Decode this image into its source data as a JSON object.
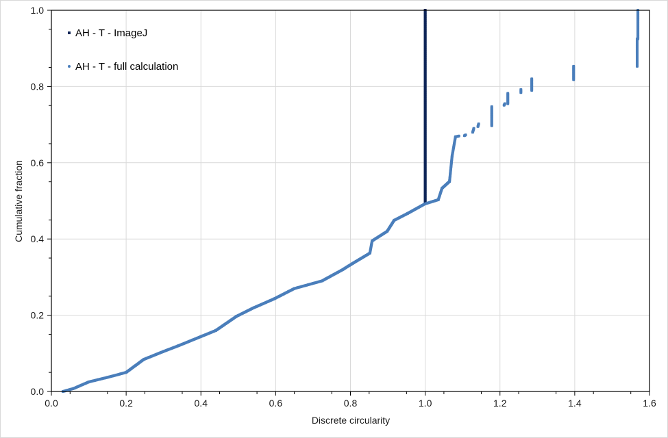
{
  "chart_data": {
    "type": "scatter",
    "xlabel": "Discrete circularity",
    "ylabel": "Cumulative fraction",
    "xlim": [
      0,
      1.6
    ],
    "ylim": [
      0,
      1.0
    ],
    "xticks": [
      "0.0",
      "0.2",
      "0.4",
      "0.6",
      "0.8",
      "1.0",
      "1.2",
      "1.4",
      "1.6"
    ],
    "yticks": [
      "0.0",
      "0.2",
      "0.4",
      "0.6",
      "0.8",
      "1.0"
    ],
    "grid": true,
    "legend_position": "top-left",
    "colors": {
      "imagej": "#0f2557",
      "full": "#4a7ebb",
      "grid": "#d9d9d9",
      "ylabel": "#5a2a10"
    },
    "series": [
      {
        "name": "AH - T - ImageJ",
        "segments": [
          [
            [
              1.0,
              0.497
            ],
            [
              1.0,
              1.0
            ]
          ]
        ]
      },
      {
        "name": "AH - T - full calculation",
        "segments": [
          [
            [
              0.031,
              0
            ],
            [
              0.06,
              0.008
            ],
            [
              0.1,
              0.025
            ],
            [
              0.15,
              0.037
            ],
            [
              0.2,
              0.05
            ],
            [
              0.247,
              0.084
            ],
            [
              0.3,
              0.105
            ],
            [
              0.34,
              0.12
            ],
            [
              0.4,
              0.144
            ],
            [
              0.44,
              0.16
            ],
            [
              0.495,
              0.197
            ],
            [
              0.54,
              0.219
            ],
            [
              0.596,
              0.243
            ],
            [
              0.65,
              0.27
            ],
            [
              0.724,
              0.29
            ],
            [
              0.78,
              0.32
            ],
            [
              0.806,
              0.336
            ],
            [
              0.852,
              0.363
            ],
            [
              0.858,
              0.395
            ],
            [
              0.898,
              0.42
            ],
            [
              0.917,
              0.449
            ],
            [
              0.953,
              0.467
            ],
            [
              0.999,
              0.492
            ],
            [
              1.035,
              0.503
            ],
            [
              1.045,
              0.533
            ],
            [
              1.065,
              0.551
            ],
            [
              1.072,
              0.618
            ],
            [
              1.081,
              0.668
            ],
            [
              1.09,
              0.67
            ]
          ],
          [
            [
              1.105,
              0.671
            ],
            [
              1.108,
              0.673
            ]
          ],
          [
            [
              1.127,
              0.68
            ],
            [
              1.13,
              0.69
            ]
          ],
          [
            [
              1.141,
              0.695
            ],
            [
              1.143,
              0.702
            ]
          ],
          [
            [
              1.178,
              0.697
            ],
            [
              1.178,
              0.747
            ]
          ],
          [
            [
              1.211,
              0.751
            ],
            [
              1.213,
              0.755
            ]
          ],
          [
            [
              1.221,
              0.755
            ],
            [
              1.221,
              0.782
            ]
          ],
          [
            [
              1.256,
              0.784
            ],
            [
              1.256,
              0.792
            ]
          ],
          [
            [
              1.285,
              0.79
            ],
            [
              1.285,
              0.82
            ]
          ],
          [
            [
              1.397,
              0.818
            ],
            [
              1.397,
              0.853
            ]
          ],
          [
            [
              1.567,
              0.853
            ],
            [
              1.567,
              0.925
            ]
          ],
          [
            [
              1.569,
              0.925
            ],
            [
              1.569,
              1.0
            ]
          ]
        ]
      }
    ]
  }
}
